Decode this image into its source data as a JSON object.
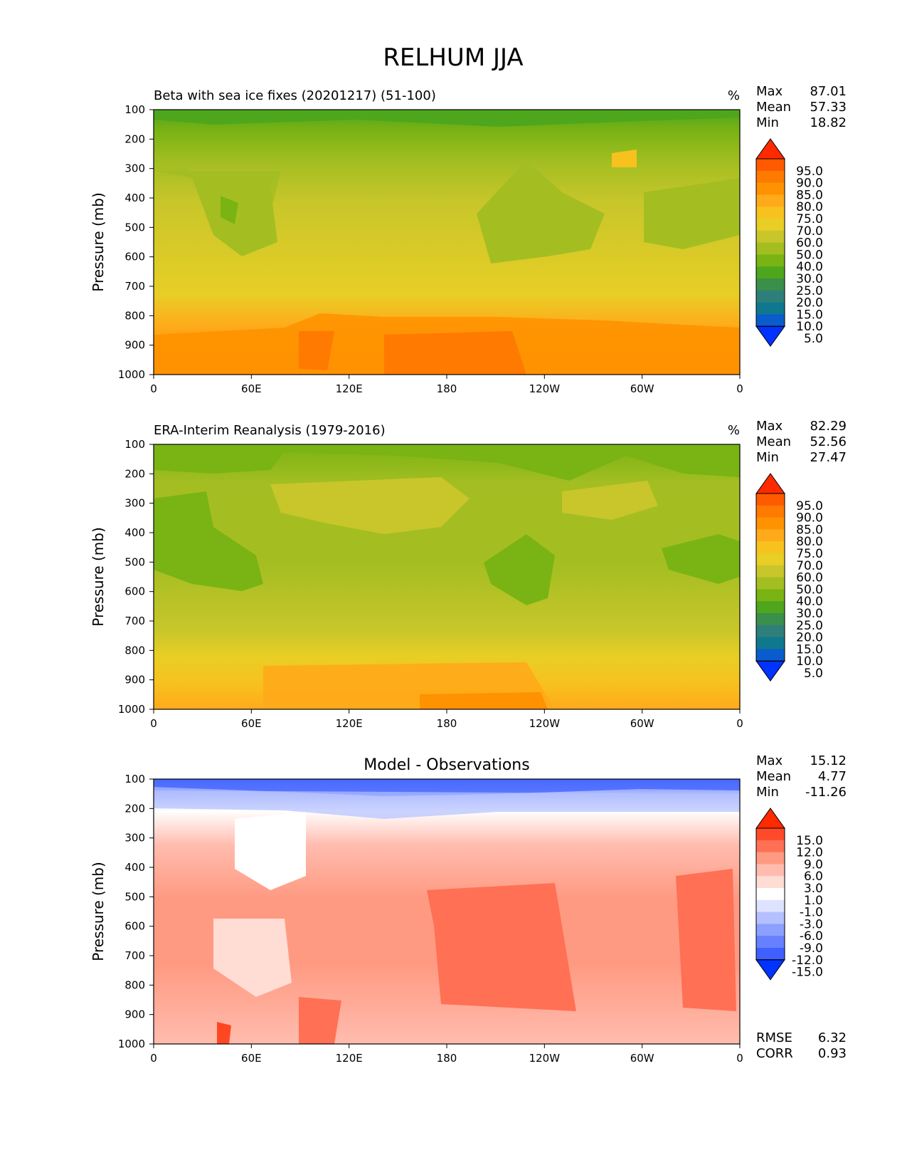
{
  "figure": {
    "title": "RELHUM JJA"
  },
  "chart_data": [
    {
      "type": "heatmap",
      "title": "Beta with sea ice fixes (20201217) (51-100)",
      "units": "%",
      "ylabel": "Pressure (mb)",
      "xlabel": "",
      "x_ticks": [
        "0",
        "60E",
        "120E",
        "180",
        "120W",
        "60W",
        "0"
      ],
      "y_ticks": [
        "100",
        "200",
        "300",
        "400",
        "500",
        "600",
        "700",
        "800",
        "900",
        "1000"
      ],
      "ylim": [
        1000,
        100
      ],
      "stats": [
        {
          "label": "Max",
          "value": "87.01"
        },
        {
          "label": "Mean",
          "value": "57.33"
        },
        {
          "label": "Min",
          "value": "18.82"
        }
      ],
      "colorbar": {
        "labels": [
          "95.0",
          "90.0",
          "85.0",
          "80.0",
          "75.0",
          "70.0",
          "60.0",
          "50.0",
          "40.0",
          "30.0",
          "25.0",
          "20.0",
          "15.0",
          "10.0",
          "5.0"
        ],
        "colors": [
          "#ff2a00",
          "#ff5a00",
          "#ff7a00",
          "#ff9200",
          "#ffaa1a",
          "#f7c21e",
          "#e8ce25",
          "#c8c62a",
          "#a4be22",
          "#7ab314",
          "#4ea61c",
          "#3a8f4a",
          "#2e7f7a",
          "#10788e",
          "#0a5ccc",
          "#0033ff"
        ]
      }
    },
    {
      "type": "heatmap",
      "title": "ERA-Interim Reanalysis (1979-2016)",
      "units": "%",
      "ylabel": "Pressure (mb)",
      "xlabel": "",
      "x_ticks": [
        "0",
        "60E",
        "120E",
        "180",
        "120W",
        "60W",
        "0"
      ],
      "y_ticks": [
        "100",
        "200",
        "300",
        "400",
        "500",
        "600",
        "700",
        "800",
        "900",
        "1000"
      ],
      "ylim": [
        1000,
        100
      ],
      "stats": [
        {
          "label": "Max",
          "value": "82.29"
        },
        {
          "label": "Mean",
          "value": "52.56"
        },
        {
          "label": "Min",
          "value": "27.47"
        }
      ],
      "colorbar": {
        "labels": [
          "95.0",
          "90.0",
          "85.0",
          "80.0",
          "75.0",
          "70.0",
          "60.0",
          "50.0",
          "40.0",
          "30.0",
          "25.0",
          "20.0",
          "15.0",
          "10.0",
          "5.0"
        ],
        "colors": [
          "#ff2a00",
          "#ff5a00",
          "#ff7a00",
          "#ff9200",
          "#ffaa1a",
          "#f7c21e",
          "#e8ce25",
          "#c8c62a",
          "#a4be22",
          "#7ab314",
          "#4ea61c",
          "#3a8f4a",
          "#2e7f7a",
          "#10788e",
          "#0a5ccc",
          "#0033ff"
        ]
      }
    },
    {
      "type": "heatmap",
      "title": "Model - Observations",
      "units": "",
      "ylabel": "Pressure (mb)",
      "xlabel": "",
      "x_ticks": [
        "0",
        "60E",
        "120E",
        "180",
        "120W",
        "60W",
        "0"
      ],
      "y_ticks": [
        "100",
        "200",
        "300",
        "400",
        "500",
        "600",
        "700",
        "800",
        "900",
        "1000"
      ],
      "ylim": [
        1000,
        100
      ],
      "stats": [
        {
          "label": "Max",
          "value": "15.12"
        },
        {
          "label": "Mean",
          "value": "4.77"
        },
        {
          "label": "Min",
          "value": "-11.26"
        }
      ],
      "extra_stats": [
        {
          "label": "RMSE",
          "value": "6.32"
        },
        {
          "label": "CORR",
          "value": "0.93"
        }
      ],
      "colorbar": {
        "labels": [
          "15.0",
          "12.0",
          "9.0",
          "6.0",
          "3.0",
          "1.0",
          "-1.0",
          "-3.0",
          "-6.0",
          "-9.0",
          "-12.0",
          "-15.0"
        ],
        "colors": [
          "#ff2a00",
          "#ff4a2a",
          "#ff7055",
          "#ff9a82",
          "#ffbcae",
          "#ffdcd4",
          "#ffffff",
          "#dde2ff",
          "#b4c0ff",
          "#8ca0ff",
          "#6680ff",
          "#3d60ff",
          "#0033ff"
        ]
      }
    }
  ]
}
